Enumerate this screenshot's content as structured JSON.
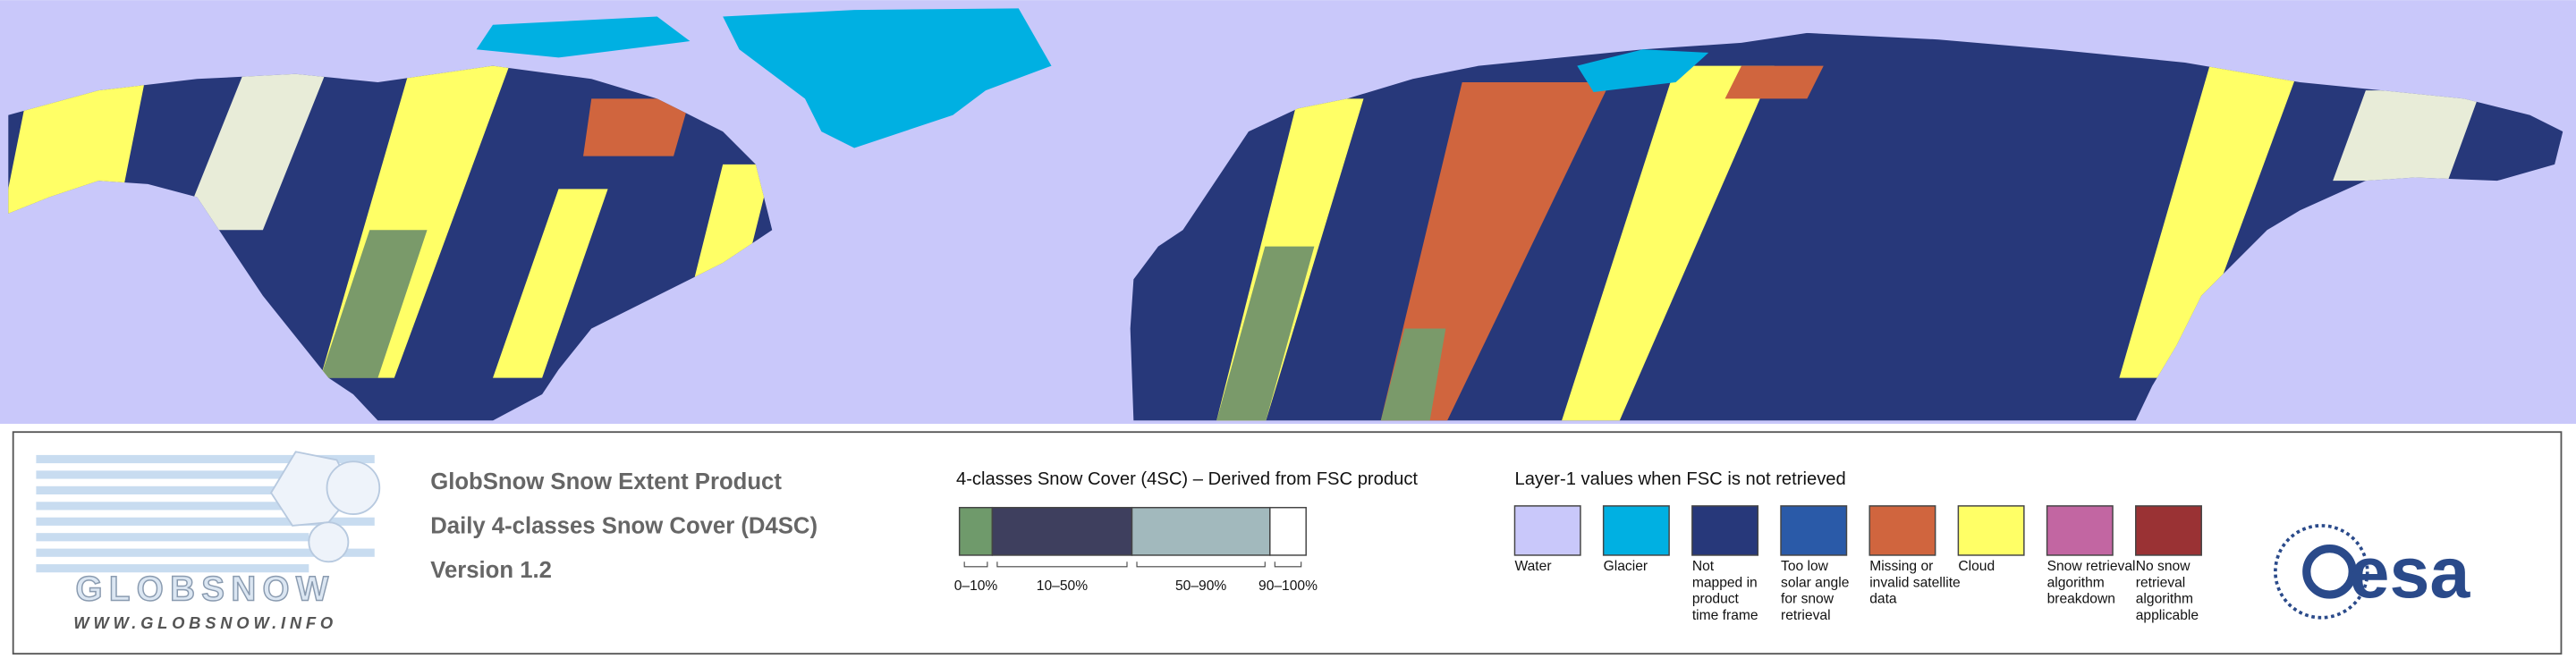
{
  "logo": {
    "name": "GLOBSNOW",
    "url": "WWW.GLOBSNOW.INFO"
  },
  "product": {
    "title": "GlobSnow Snow Extent Product",
    "subtitle": "Daily 4-classes Snow Cover (D4SC)",
    "version": "Version 1.2"
  },
  "snow_cover_legend": {
    "title": "4-classes Snow Cover (4SC) – Derived from FSC product",
    "classes": [
      {
        "label": "0–10%",
        "color": "#6f9a6b"
      },
      {
        "label": "10–50%",
        "color": "#3e3f5e"
      },
      {
        "label": "50–90%",
        "color": "#a2b9bd"
      },
      {
        "label": "90–100%",
        "color": "#ffffff"
      }
    ]
  },
  "layer1_legend": {
    "title": "Layer-1 values when FSC is not retrieved",
    "items": [
      {
        "lines": [
          "Water"
        ],
        "color": "#c9c8fa"
      },
      {
        "lines": [
          "Glacier"
        ],
        "color": "#00b0e2"
      },
      {
        "lines": [
          "Not",
          "mapped in",
          "product",
          "time frame"
        ],
        "color": "#27387a"
      },
      {
        "lines": [
          "Too low",
          "solar angle",
          "for snow",
          "retrieval"
        ],
        "color": "#2a5aa8"
      },
      {
        "lines": [
          "Missing or",
          "invalid satellite",
          "data"
        ],
        "color": "#d0653e"
      },
      {
        "lines": [
          "Cloud"
        ],
        "color": "#ffff66"
      },
      {
        "lines": [
          "Snow retrieval",
          "algorithm",
          "breakdown"
        ],
        "color": "#c266a2"
      },
      {
        "lines": [
          "No snow",
          "retrieval",
          "algorithm",
          "applicable"
        ],
        "color": "#9a3234"
      }
    ]
  },
  "agency": "esa"
}
